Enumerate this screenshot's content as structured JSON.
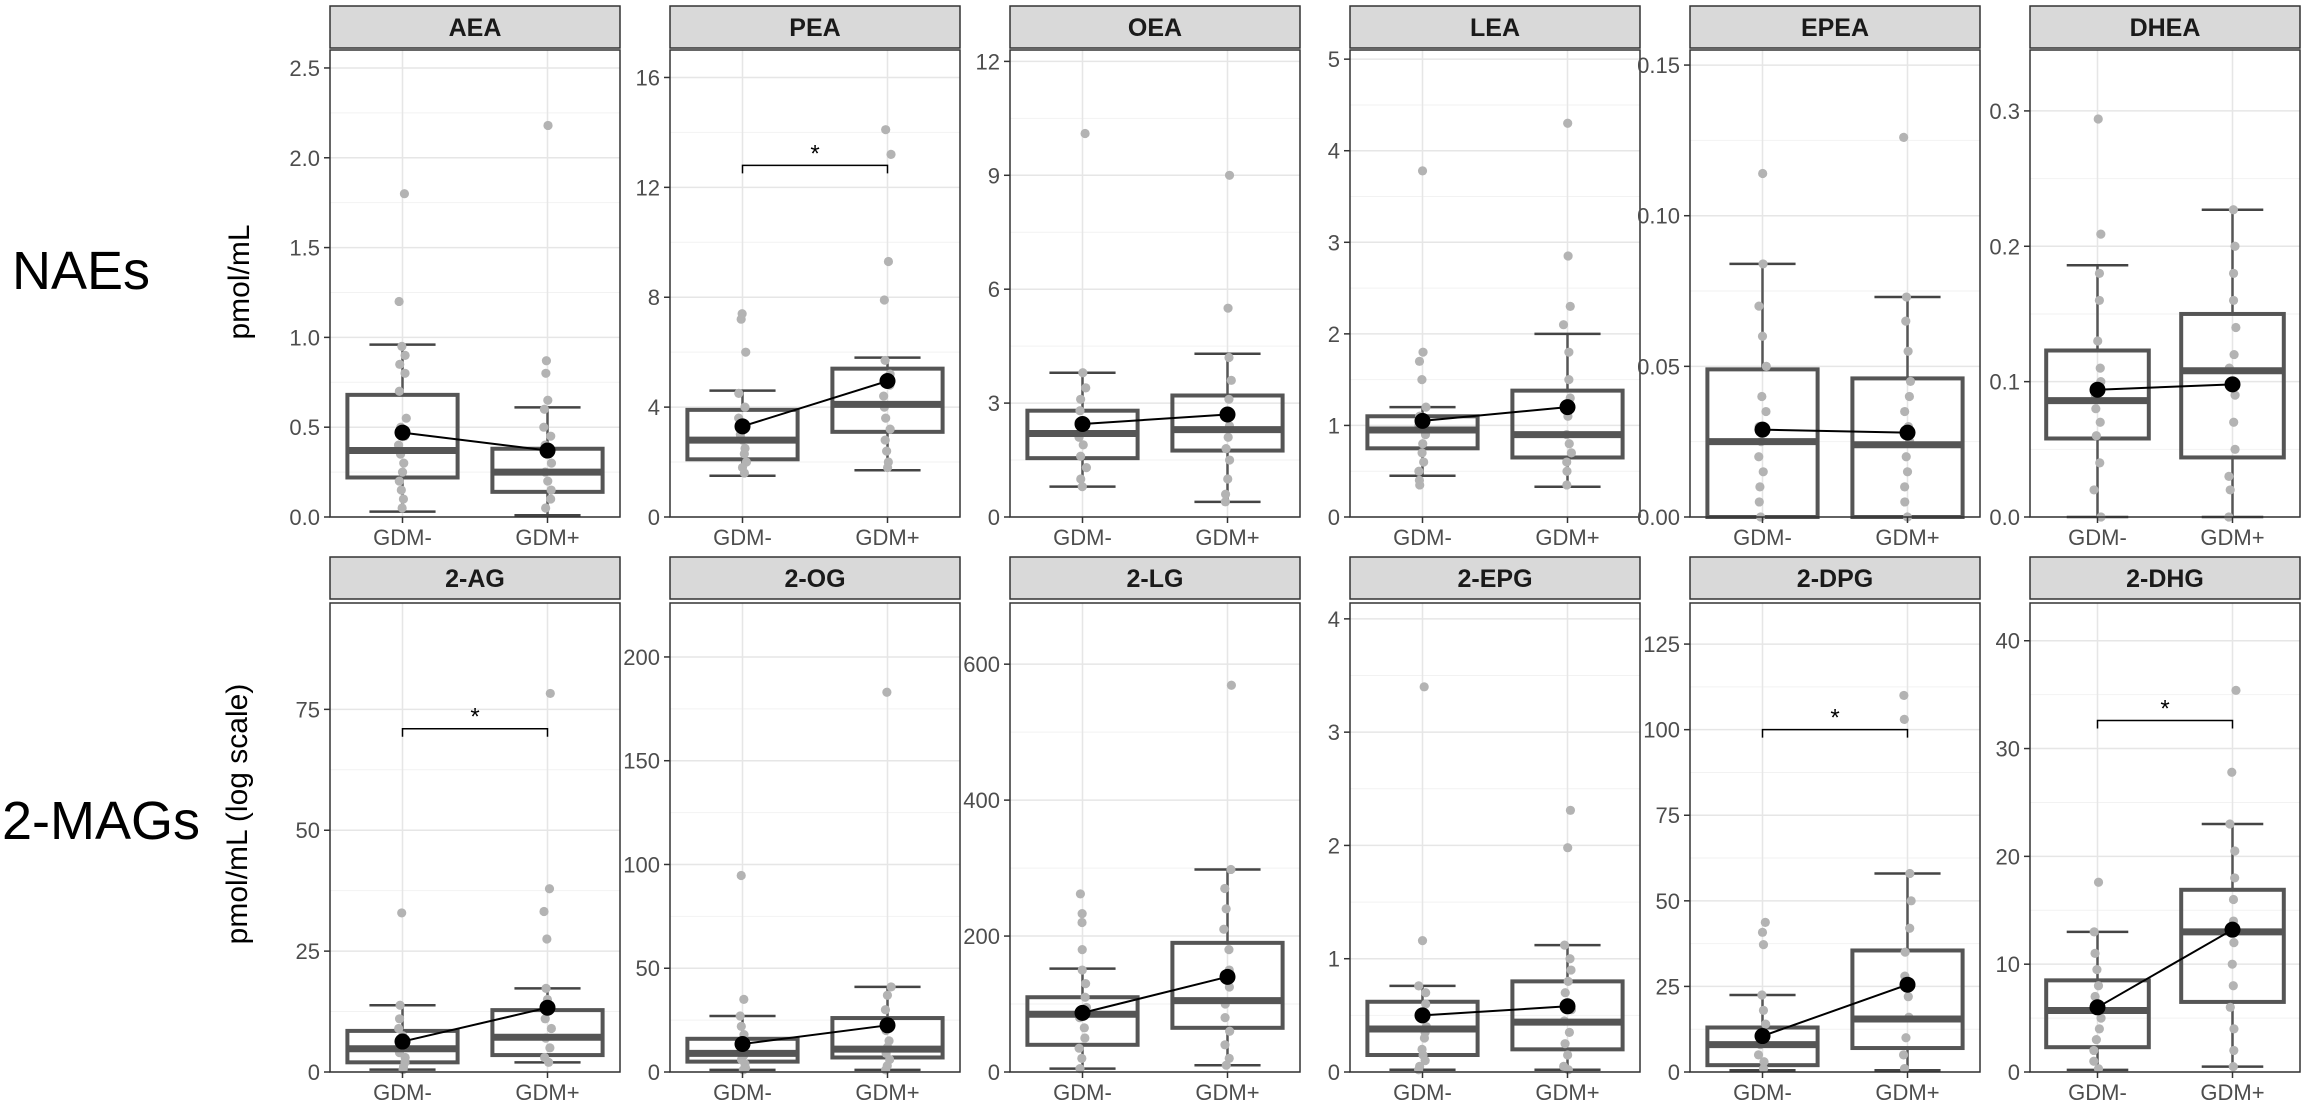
{
  "figure": {
    "row_labels": [
      "NAEs",
      "2-MAGs"
    ],
    "y_labels": [
      "pmol/mL",
      "pmol/mL (log scale)"
    ],
    "significance_marker": "*"
  },
  "chart_data": [
    {
      "type": "box",
      "title": "AEA",
      "row": 0,
      "col": 0,
      "categories": [
        "GDM-",
        "GDM+"
      ],
      "ylim": [
        0,
        2.6
      ],
      "yticks": [
        0,
        0.5,
        1.0,
        1.5,
        2.0,
        2.5
      ],
      "ytick_labels": [
        "0.0",
        "0.5",
        "1.0",
        "1.5",
        "2.0",
        "2.5"
      ],
      "boxes": [
        {
          "q1": 0.22,
          "median": 0.37,
          "q3": 0.68,
          "wlo": 0.03,
          "whi": 0.96,
          "mean": 0.47
        },
        {
          "q1": 0.14,
          "median": 0.25,
          "q3": 0.38,
          "wlo": 0.01,
          "whi": 0.61,
          "mean": 0.37
        }
      ],
      "points": [
        [
          1.8,
          1.2,
          0.95,
          0.9,
          0.85,
          0.8,
          0.7,
          0.55,
          0.5,
          0.45,
          0.4,
          0.35,
          0.3,
          0.25,
          0.2,
          0.15,
          0.1,
          0.05
        ],
        [
          2.18,
          0.87,
          0.8,
          0.65,
          0.6,
          0.5,
          0.45,
          0.4,
          0.35,
          0.3,
          0.25,
          0.2,
          0.15,
          0.1,
          0.05
        ]
      ],
      "significance": null
    },
    {
      "type": "box",
      "title": "PEA",
      "row": 0,
      "col": 1,
      "categories": [
        "GDM-",
        "GDM+"
      ],
      "ylim": [
        0,
        17
      ],
      "yticks": [
        0,
        4,
        8,
        12,
        16
      ],
      "ytick_labels": [
        "0",
        "4",
        "8",
        "12",
        "16"
      ],
      "boxes": [
        {
          "q1": 2.1,
          "median": 2.8,
          "q3": 3.9,
          "wlo": 1.5,
          "whi": 4.6,
          "mean": 3.3
        },
        {
          "q1": 3.1,
          "median": 4.1,
          "q3": 5.4,
          "wlo": 1.7,
          "whi": 5.8,
          "mean": 4.95
        }
      ],
      "points": [
        [
          7.4,
          7.2,
          6.0,
          4.5,
          4.0,
          3.6,
          3.2,
          3.0,
          2.8,
          2.5,
          2.3,
          2.0,
          1.8,
          1.6
        ],
        [
          14.1,
          13.2,
          9.3,
          7.9,
          5.7,
          5.2,
          4.8,
          4.4,
          4.0,
          3.6,
          3.2,
          2.8,
          2.4,
          2.0,
          1.8
        ]
      ],
      "significance": {
        "y": 12.8,
        "label": "*"
      }
    },
    {
      "type": "box",
      "title": "OEA",
      "row": 0,
      "col": 2,
      "categories": [
        "GDM-",
        "GDM+"
      ],
      "ylim": [
        0,
        12.3
      ],
      "yticks": [
        0,
        3,
        6,
        9,
        12
      ],
      "ytick_labels": [
        "0",
        "3",
        "6",
        "9",
        "12"
      ],
      "boxes": [
        {
          "q1": 1.55,
          "median": 2.2,
          "q3": 2.8,
          "wlo": 0.8,
          "whi": 3.8,
          "mean": 2.45
        },
        {
          "q1": 1.75,
          "median": 2.3,
          "q3": 3.2,
          "wlo": 0.4,
          "whi": 4.3,
          "mean": 2.7
        }
      ],
      "points": [
        [
          10.1,
          3.8,
          3.4,
          3.1,
          2.8,
          2.5,
          2.3,
          2.1,
          1.9,
          1.6,
          1.3,
          1.0,
          0.8
        ],
        [
          9.0,
          5.5,
          4.2,
          3.6,
          3.1,
          2.7,
          2.4,
          2.1,
          1.8,
          1.5,
          1.0,
          0.6,
          0.4
        ]
      ],
      "significance": null
    },
    {
      "type": "box",
      "title": "LEA",
      "row": 0,
      "col": 3,
      "categories": [
        "GDM-",
        "GDM+"
      ],
      "ylim": [
        0,
        5.1
      ],
      "yticks": [
        0,
        1,
        2,
        3,
        4,
        5
      ],
      "ytick_labels": [
        "0",
        "1",
        "2",
        "3",
        "4",
        "5"
      ],
      "boxes": [
        {
          "q1": 0.75,
          "median": 0.95,
          "q3": 1.1,
          "wlo": 0.45,
          "whi": 1.2,
          "mean": 1.05
        },
        {
          "q1": 0.65,
          "median": 0.9,
          "q3": 1.38,
          "wlo": 0.33,
          "whi": 2.0,
          "mean": 1.2
        }
      ],
      "points": [
        [
          3.78,
          1.8,
          1.7,
          1.5,
          1.2,
          1.1,
          1.0,
          0.9,
          0.8,
          0.7,
          0.6,
          0.5,
          0.4,
          0.35
        ],
        [
          4.3,
          2.85,
          2.3,
          2.1,
          1.8,
          1.5,
          1.3,
          1.1,
          0.9,
          0.8,
          0.7,
          0.6,
          0.5,
          0.35
        ]
      ],
      "significance": null
    },
    {
      "type": "box",
      "title": "EPEA",
      "row": 0,
      "col": 4,
      "categories": [
        "GDM-",
        "GDM+"
      ],
      "ylim": [
        0,
        0.155
      ],
      "yticks": [
        0,
        0.05,
        0.1,
        0.15
      ],
      "ytick_labels": [
        "0.00",
        "0.05",
        "0.10",
        "0.15"
      ],
      "boxes": [
        {
          "q1": 0.0,
          "median": 0.025,
          "q3": 0.049,
          "wlo": 0.0,
          "whi": 0.084,
          "mean": 0.029
        },
        {
          "q1": 0.0,
          "median": 0.024,
          "q3": 0.046,
          "wlo": 0.0,
          "whi": 0.073,
          "mean": 0.028
        }
      ],
      "points": [
        [
          0.114,
          0.084,
          0.07,
          0.06,
          0.05,
          0.04,
          0.035,
          0.03,
          0.025,
          0.02,
          0.015,
          0.01,
          0.005,
          0.0
        ],
        [
          0.126,
          0.073,
          0.065,
          0.055,
          0.045,
          0.04,
          0.035,
          0.03,
          0.025,
          0.02,
          0.015,
          0.01,
          0.005,
          0.0
        ]
      ],
      "significance": null
    },
    {
      "type": "box",
      "title": "DHEA",
      "row": 0,
      "col": 5,
      "categories": [
        "GDM-",
        "GDM+"
      ],
      "ylim": [
        0,
        0.345
      ],
      "yticks": [
        0,
        0.1,
        0.2,
        0.3
      ],
      "ytick_labels": [
        "0.0",
        "0.1",
        "0.2",
        "0.3"
      ],
      "boxes": [
        {
          "q1": 0.058,
          "median": 0.086,
          "q3": 0.123,
          "wlo": 0.0,
          "whi": 0.186,
          "mean": 0.094
        },
        {
          "q1": 0.044,
          "median": 0.108,
          "q3": 0.15,
          "wlo": 0.0,
          "whi": 0.227,
          "mean": 0.098
        }
      ],
      "points": [
        [
          0.294,
          0.209,
          0.18,
          0.16,
          0.13,
          0.11,
          0.1,
          0.09,
          0.08,
          0.07,
          0.06,
          0.04,
          0.02,
          0.0
        ],
        [
          0.227,
          0.2,
          0.18,
          0.16,
          0.14,
          0.12,
          0.11,
          0.1,
          0.09,
          0.07,
          0.05,
          0.03,
          0.02,
          0.0
        ]
      ],
      "significance": null
    },
    {
      "type": "box",
      "title": "2-AG",
      "row": 1,
      "col": 0,
      "categories": [
        "GDM-",
        "GDM+"
      ],
      "ylim": [
        0,
        97
      ],
      "yticks": [
        0,
        25,
        50,
        75
      ],
      "ytick_labels": [
        "0",
        "25",
        "50",
        "75"
      ],
      "boxes": [
        {
          "q1": 2.0,
          "median": 4.8,
          "q3": 8.5,
          "wlo": 0.5,
          "whi": 13.8,
          "mean": 6.3
        },
        {
          "q1": 3.5,
          "median": 7.2,
          "q3": 12.8,
          "wlo": 2.0,
          "whi": 17.3,
          "mean": 13.3
        }
      ],
      "points": [
        [
          32.9,
          13.8,
          11.0,
          9.0,
          7.5,
          6.0,
          5.0,
          4.0,
          3.0,
          2.0,
          1.0,
          0.5
        ],
        [
          78.3,
          37.9,
          33.2,
          27.5,
          17.3,
          15.0,
          13.0,
          11.0,
          9.0,
          7.0,
          5.0,
          3.0,
          2.0
        ]
      ],
      "significance": {
        "y": 71,
        "label": "*"
      }
    },
    {
      "type": "box",
      "title": "2-OG",
      "row": 1,
      "col": 1,
      "categories": [
        "GDM-",
        "GDM+"
      ],
      "ylim": [
        0,
        226
      ],
      "yticks": [
        0,
        50,
        100,
        150,
        200
      ],
      "ytick_labels": [
        "0",
        "50",
        "100",
        "150",
        "200"
      ],
      "boxes": [
        {
          "q1": 5.0,
          "median": 9.0,
          "q3": 16.0,
          "wlo": 1.0,
          "whi": 27.0,
          "mean": 13.5
        },
        {
          "q1": 7.0,
          "median": 11.0,
          "q3": 26.0,
          "wlo": 1.0,
          "whi": 41.0,
          "mean": 22.5
        }
      ],
      "points": [
        [
          94.7,
          35.0,
          27.0,
          22.0,
          18.0,
          14.0,
          11.0,
          8.0,
          6.0,
          4.0,
          2.0,
          1.0
        ],
        [
          183.0,
          41.0,
          37.0,
          30.0,
          24.0,
          20.0,
          15.0,
          12.0,
          9.0,
          6.0,
          3.0,
          1.0
        ]
      ],
      "significance": null
    },
    {
      "type": "box",
      "title": "2-LG",
      "row": 1,
      "col": 2,
      "categories": [
        "GDM-",
        "GDM+"
      ],
      "ylim": [
        0,
        690
      ],
      "yticks": [
        0,
        200,
        400,
        600
      ],
      "ytick_labels": [
        "0",
        "200",
        "400",
        "600"
      ],
      "boxes": [
        {
          "q1": 40,
          "median": 85,
          "q3": 110,
          "wlo": 5,
          "whi": 152,
          "mean": 87
        },
        {
          "q1": 65,
          "median": 105,
          "q3": 190,
          "wlo": 10,
          "whi": 298,
          "mean": 140
        }
      ],
      "points": [
        [
          262,
          233,
          220,
          180,
          150,
          130,
          110,
          95,
          80,
          65,
          50,
          35,
          20,
          5
        ],
        [
          569,
          298,
          270,
          240,
          210,
          180,
          150,
          125,
          100,
          80,
          60,
          40,
          20,
          10
        ]
      ],
      "significance": null
    },
    {
      "type": "box",
      "title": "2-EPG",
      "row": 1,
      "col": 3,
      "categories": [
        "GDM-",
        "GDM+"
      ],
      "ylim": [
        0,
        4.14
      ],
      "yticks": [
        0,
        1,
        2,
        3,
        4
      ],
      "ytick_labels": [
        "0",
        "1",
        "2",
        "3",
        "4"
      ],
      "boxes": [
        {
          "q1": 0.15,
          "median": 0.38,
          "q3": 0.62,
          "wlo": 0.02,
          "whi": 0.76,
          "mean": 0.5
        },
        {
          "q1": 0.2,
          "median": 0.44,
          "q3": 0.8,
          "wlo": 0.02,
          "whi": 1.12,
          "mean": 0.58
        }
      ],
      "points": [
        [
          3.4,
          1.16,
          0.76,
          0.7,
          0.6,
          0.5,
          0.4,
          0.35,
          0.3,
          0.2,
          0.15,
          0.1,
          0.05,
          0.02
        ],
        [
          2.31,
          1.98,
          1.12,
          1.0,
          0.9,
          0.8,
          0.7,
          0.55,
          0.45,
          0.35,
          0.25,
          0.15,
          0.05,
          0.02
        ]
      ],
      "significance": null
    },
    {
      "type": "box",
      "title": "2-DPG",
      "row": 1,
      "col": 4,
      "categories": [
        "GDM-",
        "GDM+"
      ],
      "ylim": [
        0,
        137
      ],
      "yticks": [
        0,
        25,
        50,
        75,
        100,
        125
      ],
      "ytick_labels": [
        "0",
        "25",
        "50",
        "75",
        "100",
        "125"
      ],
      "boxes": [
        {
          "q1": 2.0,
          "median": 8.0,
          "q3": 13.0,
          "wlo": 0.5,
          "whi": 22.5,
          "mean": 10.5
        },
        {
          "q1": 7.0,
          "median": 15.5,
          "q3": 35.5,
          "wlo": 0.5,
          "whi": 58.0,
          "mean": 25.5
        }
      ],
      "points": [
        [
          43.7,
          40.8,
          37.2,
          22.5,
          18.0,
          14.0,
          11.0,
          8.0,
          5.0,
          3.0,
          1.0
        ],
        [
          110,
          103,
          58.0,
          50.0,
          42.0,
          35.0,
          28.0,
          22.0,
          16.0,
          10.0,
          5.0,
          1.0
        ]
      ],
      "significance": {
        "y": 100,
        "label": "*"
      }
    },
    {
      "type": "box",
      "title": "2-DHG",
      "row": 1,
      "col": 5,
      "categories": [
        "GDM-",
        "GDM+"
      ],
      "ylim": [
        0,
        43.5
      ],
      "yticks": [
        0,
        10,
        20,
        30,
        40
      ],
      "ytick_labels": [
        "0",
        "10",
        "20",
        "30",
        "40"
      ],
      "boxes": [
        {
          "q1": 2.3,
          "median": 5.7,
          "q3": 8.5,
          "wlo": 0.2,
          "whi": 13.0,
          "mean": 6.0
        },
        {
          "q1": 6.5,
          "median": 13.0,
          "q3": 16.9,
          "wlo": 0.5,
          "whi": 23.0,
          "mean": 13.2
        }
      ],
      "points": [
        [
          17.6,
          13.0,
          11.0,
          9.5,
          8.0,
          7.0,
          6.0,
          5.0,
          4.0,
          3.0,
          2.0,
          1.0,
          0.3
        ],
        [
          35.4,
          27.8,
          23.0,
          20.5,
          18.0,
          16.0,
          14.0,
          12.0,
          10.0,
          8.0,
          6.0,
          4.0,
          2.0,
          0.5
        ]
      ],
      "significance": {
        "y": 32.6,
        "label": "*"
      }
    }
  ]
}
